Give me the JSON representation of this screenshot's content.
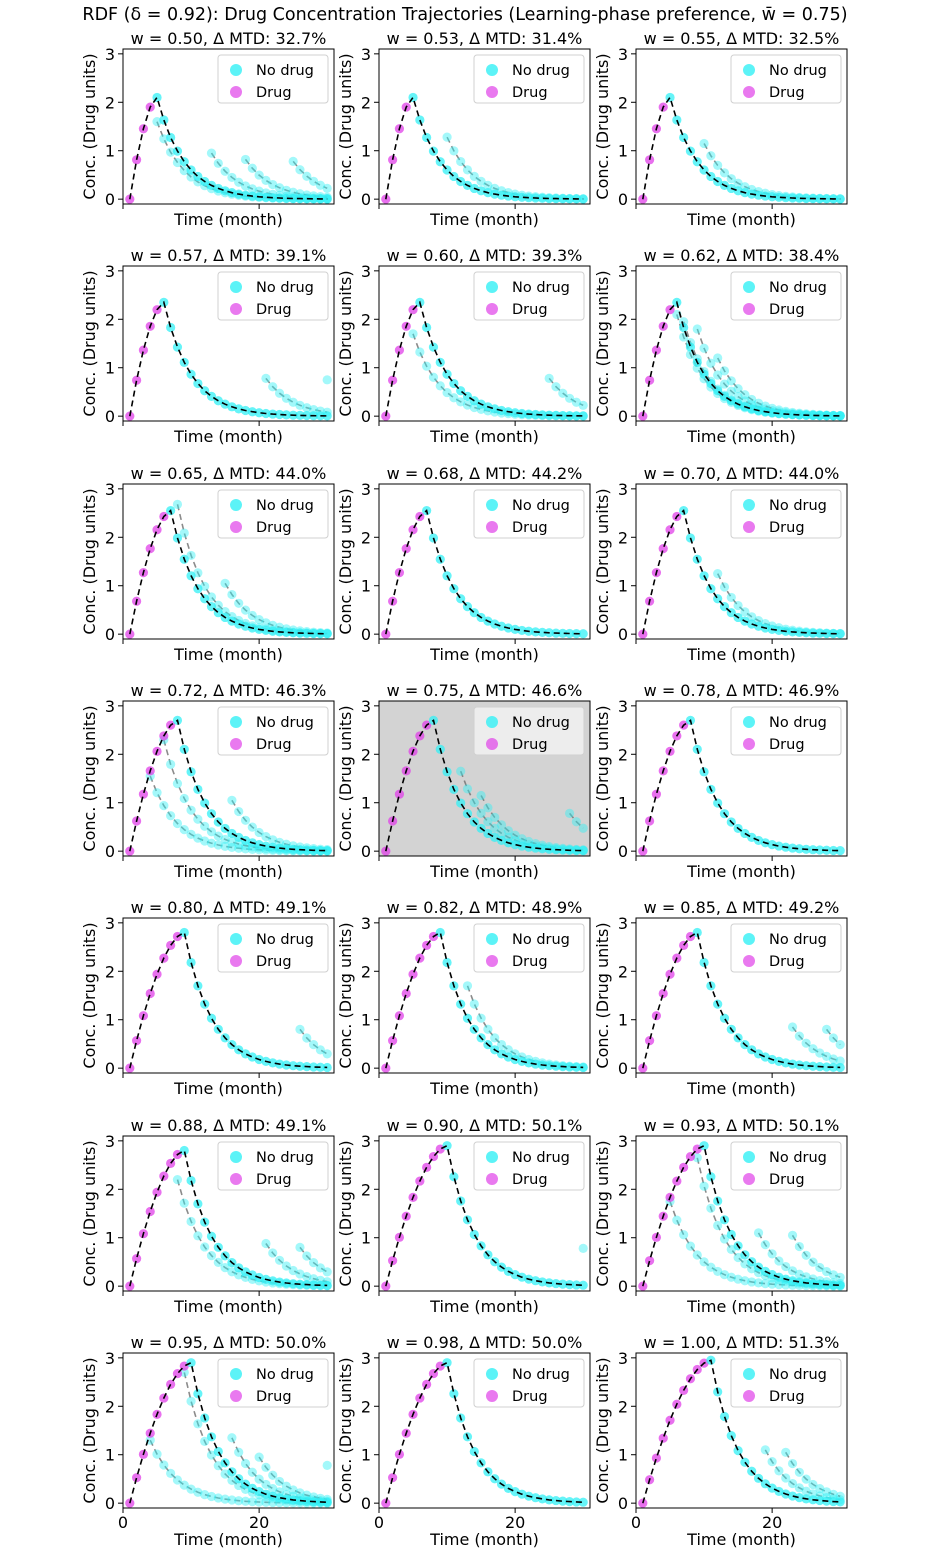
{
  "figure": {
    "title": "RDF (δ = 0.92): Drug Concentration Trajectories (Learning-phase preference, w̄ = 0.75)",
    "colors": {
      "no_drug": "#33f0f5",
      "drug": "#e040e8",
      "mean_line": "#000000",
      "alt_line": "#6e6e6e",
      "highlight_bg": "#d3d3d3"
    }
  },
  "chart_data": [
    {
      "type": "line",
      "w": "0.50",
      "title": "w = 0.50, Δ MTD: 32.7%",
      "xlabel": "Time (month)",
      "ylabel": "Conc. (Drug units)",
      "xlim": [
        0,
        31
      ],
      "ylim": [
        -0.1,
        3.1
      ],
      "xticks": [
        0,
        20
      ],
      "yticks": [
        0,
        1,
        2,
        3
      ],
      "legend": [
        "No drug",
        "Drug"
      ],
      "legend_loc": "upper right",
      "peak_month": 5,
      "peak_value": 2.1,
      "alts": [
        {
          "t": 5,
          "v": 1.6
        },
        {
          "t": 13,
          "v": 0.95
        },
        {
          "t": 18,
          "v": 0.82
        },
        {
          "t": 25,
          "v": 0.78
        }
      ],
      "highlighted": false
    },
    {
      "type": "line",
      "w": "0.53",
      "title": "w = 0.53, Δ MTD: 31.4%",
      "xlabel": "Time (month)",
      "ylabel": "Conc. (Drug units)",
      "xlim": [
        0,
        31
      ],
      "ylim": [
        -0.1,
        3.1
      ],
      "xticks": [
        0,
        20
      ],
      "yticks": [
        0,
        1,
        2,
        3
      ],
      "legend": [
        "No drug",
        "Drug"
      ],
      "legend_loc": "upper right",
      "peak_month": 5,
      "peak_value": 2.1,
      "alts": [
        {
          "t": 10,
          "v": 1.28
        }
      ],
      "highlighted": false
    },
    {
      "type": "line",
      "w": "0.55",
      "title": "w = 0.55, Δ MTD: 32.5%",
      "xlabel": "Time (month)",
      "ylabel": "Conc. (Drug units)",
      "xlim": [
        0,
        31
      ],
      "ylim": [
        -0.1,
        3.1
      ],
      "xticks": [
        0,
        20
      ],
      "yticks": [
        0,
        1,
        2,
        3
      ],
      "legend": [
        "No drug",
        "Drug"
      ],
      "legend_loc": "upper right",
      "peak_month": 5,
      "peak_value": 2.1,
      "alts": [
        {
          "t": 10,
          "v": 1.15
        }
      ],
      "highlighted": false
    },
    {
      "type": "line",
      "w": "0.57",
      "title": "w = 0.57, Δ MTD: 39.1%",
      "xlabel": "Time (month)",
      "ylabel": "Conc. (Drug units)",
      "xlim": [
        0,
        31
      ],
      "ylim": [
        -0.1,
        3.1
      ],
      "xticks": [
        0,
        20
      ],
      "yticks": [
        0,
        1,
        2,
        3
      ],
      "legend": [
        "No drug",
        "Drug"
      ],
      "legend_loc": "upper right",
      "peak_month": 6,
      "peak_value": 2.35,
      "alts": [
        {
          "t": 21,
          "v": 0.78
        },
        {
          "t": 30,
          "v": 0.75
        }
      ],
      "highlighted": false
    },
    {
      "type": "line",
      "w": "0.60",
      "title": "w = 0.60, Δ MTD: 39.3%",
      "xlabel": "Time (month)",
      "ylabel": "Conc. (Drug units)",
      "xlim": [
        0,
        31
      ],
      "ylim": [
        -0.1,
        3.1
      ],
      "xticks": [
        0,
        20
      ],
      "yticks": [
        0,
        1,
        2,
        3
      ],
      "legend": [
        "No drug",
        "Drug"
      ],
      "legend_loc": "upper right",
      "peak_month": 6,
      "peak_value": 2.35,
      "alts": [
        {
          "t": 5,
          "v": 1.7
        },
        {
          "t": 25,
          "v": 0.78
        }
      ],
      "highlighted": false
    },
    {
      "type": "line",
      "w": "0.62",
      "title": "w = 0.62, Δ MTD: 38.4%",
      "xlabel": "Time (month)",
      "ylabel": "Conc. (Drug units)",
      "xlim": [
        0,
        31
      ],
      "ylim": [
        -0.1,
        3.1
      ],
      "xticks": [
        0,
        20
      ],
      "yticks": [
        0,
        1,
        2,
        3
      ],
      "legend": [
        "No drug",
        "Drug"
      ],
      "legend_loc": "upper right",
      "peak_month": 6,
      "peak_value": 2.35,
      "alts": [
        {
          "t": 6,
          "v": 2.1
        },
        {
          "t": 7,
          "v": 1.95
        },
        {
          "t": 9,
          "v": 1.8
        },
        {
          "t": 12,
          "v": 1.2
        }
      ],
      "highlighted": false
    },
    {
      "type": "line",
      "w": "0.65",
      "title": "w = 0.65, Δ MTD: 44.0%",
      "xlabel": "Time (month)",
      "ylabel": "Conc. (Drug units)",
      "xlim": [
        0,
        31
      ],
      "ylim": [
        -0.1,
        3.1
      ],
      "xticks": [
        0,
        20
      ],
      "yticks": [
        0,
        1,
        2,
        3
      ],
      "legend": [
        "No drug",
        "Drug"
      ],
      "legend_loc": "upper right",
      "peak_month": 7,
      "peak_value": 2.55,
      "alts": [
        {
          "t": 8,
          "v": 2.68
        },
        {
          "t": 15,
          "v": 1.05
        }
      ],
      "highlighted": false
    },
    {
      "type": "line",
      "w": "0.68",
      "title": "w = 0.68, Δ MTD: 44.2%",
      "xlabel": "Time (month)",
      "ylabel": "Conc. (Drug units)",
      "xlim": [
        0,
        31
      ],
      "ylim": [
        -0.1,
        3.1
      ],
      "xticks": [
        0,
        20
      ],
      "yticks": [
        0,
        1,
        2,
        3
      ],
      "legend": [
        "No drug",
        "Drug"
      ],
      "legend_loc": "upper right",
      "peak_month": 7,
      "peak_value": 2.55,
      "alts": [],
      "highlighted": false
    },
    {
      "type": "line",
      "w": "0.70",
      "title": "w = 0.70, Δ MTD: 44.0%",
      "xlabel": "Time (month)",
      "ylabel": "Conc. (Drug units)",
      "xlim": [
        0,
        31
      ],
      "ylim": [
        -0.1,
        3.1
      ],
      "xticks": [
        0,
        20
      ],
      "yticks": [
        0,
        1,
        2,
        3
      ],
      "legend": [
        "No drug",
        "Drug"
      ],
      "legend_loc": "upper right",
      "peak_month": 7,
      "peak_value": 2.55,
      "alts": [
        {
          "t": 12,
          "v": 1.25
        }
      ],
      "highlighted": false
    },
    {
      "type": "line",
      "w": "0.72",
      "title": "w = 0.72, Δ MTD: 46.3%",
      "xlabel": "Time (month)",
      "ylabel": "Conc. (Drug units)",
      "xlim": [
        0,
        31
      ],
      "ylim": [
        -0.1,
        3.1
      ],
      "xticks": [
        0,
        20
      ],
      "yticks": [
        0,
        1,
        2,
        3
      ],
      "legend": [
        "No drug",
        "Drug"
      ],
      "legend_loc": "upper right",
      "peak_month": 8,
      "peak_value": 2.7,
      "alts": [
        {
          "t": 4,
          "v": 1.55
        },
        {
          "t": 6,
          "v": 2.3
        },
        {
          "t": 16,
          "v": 1.05
        }
      ],
      "highlighted": false
    },
    {
      "type": "line",
      "w": "0.75",
      "title": "w = 0.75, Δ MTD: 46.6%",
      "xlabel": "Time (month)",
      "ylabel": "Conc. (Drug units)",
      "xlim": [
        0,
        31
      ],
      "ylim": [
        -0.1,
        3.1
      ],
      "xticks": [
        0,
        20
      ],
      "yticks": [
        0,
        1,
        2,
        3
      ],
      "legend": [
        "No drug",
        "Drug"
      ],
      "legend_loc": "upper right",
      "peak_month": 8,
      "peak_value": 2.7,
      "alts": [
        {
          "t": 12,
          "v": 1.65
        },
        {
          "t": 15,
          "v": 1.15
        },
        {
          "t": 28,
          "v": 0.78
        }
      ],
      "highlighted": true
    },
    {
      "type": "line",
      "w": "0.78",
      "title": "w = 0.78, Δ MTD: 46.9%",
      "xlabel": "Time (month)",
      "ylabel": "Conc. (Drug units)",
      "xlim": [
        0,
        31
      ],
      "ylim": [
        -0.1,
        3.1
      ],
      "xticks": [
        0,
        20
      ],
      "yticks": [
        0,
        1,
        2,
        3
      ],
      "legend": [
        "No drug",
        "Drug"
      ],
      "legend_loc": "upper right",
      "peak_month": 8,
      "peak_value": 2.7,
      "alts": [],
      "highlighted": false
    },
    {
      "type": "line",
      "w": "0.80",
      "title": "w = 0.80, Δ MTD: 49.1%",
      "xlabel": "Time (month)",
      "ylabel": "Conc. (Drug units)",
      "xlim": [
        0,
        31
      ],
      "ylim": [
        -0.1,
        3.1
      ],
      "xticks": [
        0,
        20
      ],
      "yticks": [
        0,
        1,
        2,
        3
      ],
      "legend": [
        "No drug",
        "Drug"
      ],
      "legend_loc": "upper right",
      "peak_month": 9,
      "peak_value": 2.8,
      "alts": [
        {
          "t": 26,
          "v": 0.8
        }
      ],
      "highlighted": false
    },
    {
      "type": "line",
      "w": "0.82",
      "title": "w = 0.82, Δ MTD: 48.9%",
      "xlabel": "Time (month)",
      "ylabel": "Conc. (Drug units)",
      "xlim": [
        0,
        31
      ],
      "ylim": [
        -0.1,
        3.1
      ],
      "xticks": [
        0,
        20
      ],
      "yticks": [
        0,
        1,
        2,
        3
      ],
      "legend": [
        "No drug",
        "Drug"
      ],
      "legend_loc": "upper right",
      "peak_month": 9,
      "peak_value": 2.8,
      "alts": [
        {
          "t": 13,
          "v": 1.7
        }
      ],
      "highlighted": false
    },
    {
      "type": "line",
      "w": "0.85",
      "title": "w = 0.85, Δ MTD: 49.2%",
      "xlabel": "Time (month)",
      "ylabel": "Conc. (Drug units)",
      "xlim": [
        0,
        31
      ],
      "ylim": [
        -0.1,
        3.1
      ],
      "xticks": [
        0,
        20
      ],
      "yticks": [
        0,
        1,
        2,
        3
      ],
      "legend": [
        "No drug",
        "Drug"
      ],
      "legend_loc": "upper right",
      "peak_month": 9,
      "peak_value": 2.8,
      "alts": [
        {
          "t": 23,
          "v": 0.85
        },
        {
          "t": 28,
          "v": 0.8
        }
      ],
      "highlighted": false
    },
    {
      "type": "line",
      "w": "0.88",
      "title": "w = 0.88, Δ MTD: 49.1%",
      "xlabel": "Time (month)",
      "ylabel": "Conc. (Drug units)",
      "xlim": [
        0,
        31
      ],
      "ylim": [
        -0.1,
        3.1
      ],
      "xticks": [
        0,
        20
      ],
      "yticks": [
        0,
        1,
        2,
        3
      ],
      "legend": [
        "No drug",
        "Drug"
      ],
      "legend_loc": "upper right",
      "peak_month": 9,
      "peak_value": 2.8,
      "alts": [
        {
          "t": 8,
          "v": 2.2
        },
        {
          "t": 21,
          "v": 0.88
        },
        {
          "t": 26,
          "v": 0.8
        }
      ],
      "highlighted": false
    },
    {
      "type": "line",
      "w": "0.90",
      "title": "w = 0.90, Δ MTD: 50.1%",
      "xlabel": "Time (month)",
      "ylabel": "Conc. (Drug units)",
      "xlim": [
        0,
        31
      ],
      "ylim": [
        -0.1,
        3.1
      ],
      "xticks": [
        0,
        20
      ],
      "yticks": [
        0,
        1,
        2,
        3
      ],
      "legend": [
        "No drug",
        "Drug"
      ],
      "legend_loc": "upper right",
      "peak_month": 10,
      "peak_value": 2.9,
      "alts": [
        {
          "t": 30,
          "v": 0.78
        }
      ],
      "highlighted": false
    },
    {
      "type": "line",
      "w": "0.93",
      "title": "w = 0.93, Δ MTD: 50.1%",
      "xlabel": "Time (month)",
      "ylabel": "Conc. (Drug units)",
      "xlim": [
        0,
        31
      ],
      "ylim": [
        -0.1,
        3.1
      ],
      "xticks": [
        0,
        20
      ],
      "yticks": [
        0,
        1,
        2,
        3
      ],
      "legend": [
        "No drug",
        "Drug"
      ],
      "legend_loc": "upper right",
      "peak_month": 10,
      "peak_value": 2.9,
      "alts": [
        {
          "t": 5,
          "v": 1.75
        },
        {
          "t": 9,
          "v": 2.65
        },
        {
          "t": 18,
          "v": 1.1
        },
        {
          "t": 23,
          "v": 1.05
        }
      ],
      "highlighted": false
    },
    {
      "type": "line",
      "w": "0.95",
      "title": "w = 0.95, Δ MTD: 50.0%",
      "xlabel": "Time (month)",
      "ylabel": "Conc. (Drug units)",
      "xlim": [
        0,
        31
      ],
      "ylim": [
        -0.1,
        3.1
      ],
      "xticks": [
        0,
        20
      ],
      "yticks": [
        0,
        1,
        2,
        3
      ],
      "legend": [
        "No drug",
        "Drug"
      ],
      "legend_loc": "upper right",
      "peak_month": 10,
      "peak_value": 2.9,
      "alts": [
        {
          "t": 4,
          "v": 1.3
        },
        {
          "t": 9,
          "v": 2.7
        },
        {
          "t": 16,
          "v": 1.35
        },
        {
          "t": 20,
          "v": 0.95
        },
        {
          "t": 30,
          "v": 0.78
        }
      ],
      "highlighted": false
    },
    {
      "type": "line",
      "w": "0.98",
      "title": "w = 0.98, Δ MTD: 50.0%",
      "xlabel": "Time (month)",
      "ylabel": "Conc. (Drug units)",
      "xlim": [
        0,
        31
      ],
      "ylim": [
        -0.1,
        3.1
      ],
      "xticks": [
        0,
        20
      ],
      "yticks": [
        0,
        1,
        2,
        3
      ],
      "legend": [
        "No drug",
        "Drug"
      ],
      "legend_loc": "upper right",
      "peak_month": 10,
      "peak_value": 2.9,
      "alts": [],
      "highlighted": false
    },
    {
      "type": "line",
      "w": "1.00",
      "title": "w = 1.00, Δ MTD: 51.3%",
      "xlabel": "Time (month)",
      "ylabel": "Conc. (Drug units)",
      "xlim": [
        0,
        31
      ],
      "ylim": [
        -0.1,
        3.1
      ],
      "xticks": [
        0,
        20
      ],
      "yticks": [
        0,
        1,
        2,
        3
      ],
      "legend": [
        "No drug",
        "Drug"
      ],
      "legend_loc": "upper right",
      "peak_month": 11,
      "peak_value": 2.95,
      "alts": [
        {
          "t": 19,
          "v": 1.1
        },
        {
          "t": 22,
          "v": 1.05
        }
      ],
      "highlighted": false
    }
  ]
}
